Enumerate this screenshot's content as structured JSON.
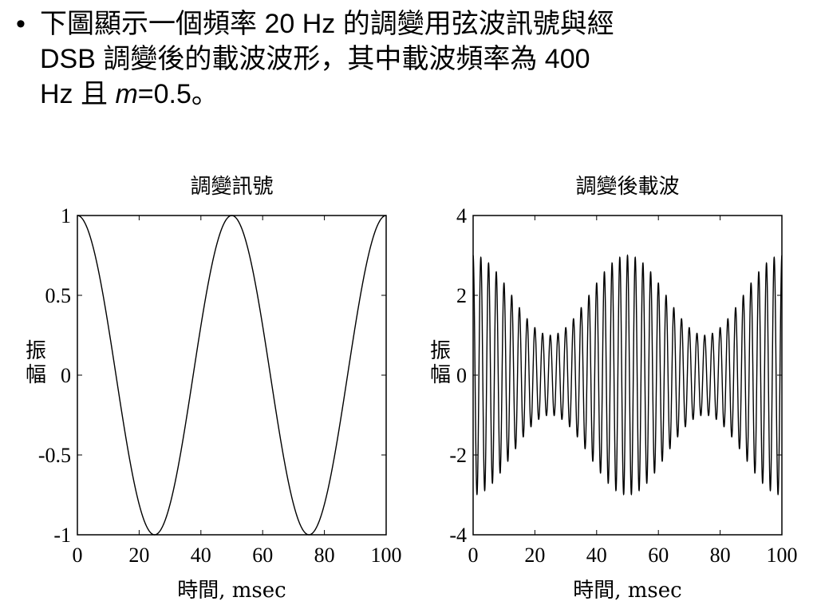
{
  "slide": {
    "bullet": "•",
    "line1": "下圖顯示一個頻率 20 Hz 的調變用弦波訊號與經",
    "line2": "DSB  調變後的載波波形，其中載波頻率為  400",
    "line3_a": "Hz 且 ",
    "line3_m": "m",
    "line3_b": "=0.5。"
  },
  "chart_data": [
    {
      "type": "line",
      "title": "調變訊號",
      "xlabel": "時間, msec",
      "ylabel": "振幅",
      "xlim": [
        0,
        100
      ],
      "ylim": [
        -1,
        1
      ],
      "xticks": [
        "0",
        "20",
        "40",
        "60",
        "80",
        "100"
      ],
      "yticks": [
        "1",
        "0.5",
        "0",
        "-0.5",
        "-1"
      ],
      "grid": false,
      "series": [
        {
          "function": "cos(2*pi*20*t)",
          "x": [
            0,
            12.5,
            25,
            37.5,
            50,
            62.5,
            75,
            87.5,
            100
          ],
          "y": [
            1,
            0,
            -1,
            0,
            1,
            0,
            -1,
            0,
            1
          ],
          "color": "#000000"
        }
      ]
    },
    {
      "type": "line",
      "title": "調變後載波",
      "xlabel": "時間, msec",
      "ylabel": "振幅",
      "xlim": [
        0,
        100
      ],
      "ylim": [
        -4,
        4
      ],
      "xticks": [
        "0",
        "20",
        "40",
        "60",
        "80",
        "100"
      ],
      "yticks": [
        "4",
        "2",
        "0",
        "-2",
        "-4"
      ],
      "grid": false,
      "carrier_frequency_hz": 400,
      "modulation_frequency_hz": 20,
      "m": 0.5,
      "series": [
        {
          "function": "2*(1+0.5*cos(2*pi*20*t))*cos(2*pi*400*t)",
          "envelope_max": 3,
          "envelope_min": 1,
          "color": "#000000"
        }
      ]
    }
  ]
}
